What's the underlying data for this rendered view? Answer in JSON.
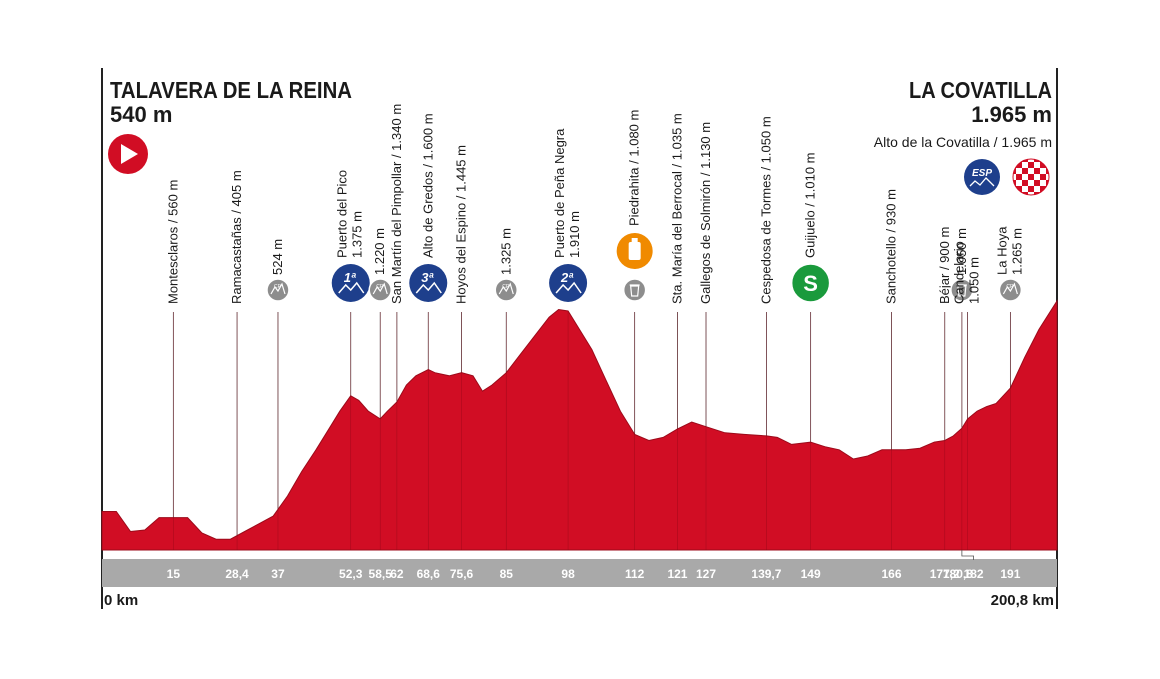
{
  "start": {
    "name": "TALAVERA DE LA REINA",
    "altitude": "540 m"
  },
  "finish": {
    "name": "LA COVATILLA",
    "altitude": "1.965 m",
    "summit": "Alto de la Covatilla / 1.965 m",
    "leader_badge": "ESP"
  },
  "axis": {
    "start_label": "0 km",
    "end_label": "200,8 km",
    "total_km": 200.8
  },
  "colors": {
    "profile": "#d10d24",
    "profile_dark": "#9c0a1a",
    "cat_badge": "#1e3f8c",
    "cp_badge": "#8d8d8d",
    "sprint": "#1a9a3c",
    "feed": "#f08a00",
    "axis_band": "#a9a9a9"
  },
  "chart_data": {
    "type": "area",
    "x": [
      0,
      3,
      6,
      9,
      12,
      15,
      18,
      21,
      24,
      27,
      30,
      33,
      36,
      39,
      42,
      45,
      48,
      50,
      52.3,
      54,
      56,
      58.5,
      60,
      62,
      64,
      66,
      68.6,
      70,
      73,
      75.6,
      78,
      80,
      82,
      85,
      88,
      91,
      94,
      96,
      98,
      100,
      103,
      106,
      109,
      112,
      115,
      118,
      121,
      124,
      127,
      131,
      135,
      139.7,
      142,
      145,
      149,
      152,
      155,
      158,
      161,
      164,
      166,
      169,
      172,
      175,
      177.2,
      179,
      180.8,
      182,
      184,
      186,
      188,
      191,
      194,
      197,
      200.8
    ],
    "y": [
      600,
      600,
      470,
      480,
      560,
      560,
      560,
      460,
      420,
      420,
      470,
      520,
      570,
      700,
      860,
      1000,
      1150,
      1250,
      1350,
      1320,
      1250,
      1200,
      1250,
      1310,
      1420,
      1480,
      1520,
      1500,
      1480,
      1500,
      1480,
      1380,
      1420,
      1500,
      1620,
      1740,
      1860,
      1910,
      1900,
      1800,
      1650,
      1450,
      1250,
      1100,
      1060,
      1080,
      1135,
      1180,
      1150,
      1110,
      1100,
      1090,
      1080,
      1035,
      1050,
      1020,
      1000,
      940,
      960,
      1000,
      1000,
      1000,
      1010,
      1050,
      1060,
      1090,
      1140,
      1200,
      1250,
      1280,
      1300,
      1400,
      1600,
      1780,
      1965
    ],
    "ylim": [
      350,
      2100
    ]
  },
  "points": [
    {
      "km": 15,
      "tick": "15",
      "label": "Montesclaros / 560 m",
      "marker": "none"
    },
    {
      "km": 28.4,
      "tick": "28,4",
      "label": "Ramacastañas / 405 m",
      "marker": "none"
    },
    {
      "km": 37,
      "tick": "37",
      "label": "524 m",
      "marker": "cp"
    },
    {
      "km": 52.3,
      "tick": "52,3",
      "label": "Puerto del Pico",
      "label2": "1.375 m",
      "marker": "cat",
      "cat": "1ª"
    },
    {
      "km": 58.5,
      "tick": "58,5",
      "label": "1.220 m",
      "marker": "cp"
    },
    {
      "km": 62,
      "tick": "62",
      "label": "San Martín del Pimpollar / 1.340 m",
      "marker": "none"
    },
    {
      "km": 68.6,
      "tick": "68,6",
      "label": "Alto de Gredos / 1.600 m",
      "marker": "cat",
      "cat": "3ª"
    },
    {
      "km": 75.6,
      "tick": "75,6",
      "label": "Hoyos del Espino / 1.445 m",
      "marker": "none"
    },
    {
      "km": 85,
      "tick": "85",
      "label": "1.325 m",
      "marker": "cp"
    },
    {
      "km": 98,
      "tick": "98",
      "label": "Puerto de Peña Negra",
      "label2": "1.910 m",
      "marker": "cat",
      "cat": "2ª"
    },
    {
      "km": 112,
      "tick": "112",
      "label": "Piedrahita / 1.080 m",
      "marker": "trash"
    },
    {
      "km": 121,
      "tick": "121",
      "label": "Sta. María del Berrocal / 1.035 m",
      "marker": "none"
    },
    {
      "km": 127,
      "tick": "127",
      "label": "Gallegos de Solmirón / 1.130 m",
      "marker": "none"
    },
    {
      "km": 139.7,
      "tick": "139,7",
      "label": "Cespedosa de Tormes / 1.050 m",
      "marker": "none"
    },
    {
      "km": 149,
      "tick": "149",
      "label": "Guijuelo / 1.010 m",
      "marker": "sprint",
      "badge": "S"
    },
    {
      "km": 166,
      "tick": "166",
      "label": "Sanchotello / 930 m",
      "marker": "none"
    },
    {
      "km": 177.2,
      "tick": "177,2",
      "label": "Béjar / 900 m",
      "marker": "none"
    },
    {
      "km": 180.8,
      "tick": "180,8",
      "label": "1.050 m",
      "marker": "trash"
    },
    {
      "km": 182,
      "tick": "182",
      "label": "Candelario",
      "label2": "1.050 m",
      "marker": "none"
    },
    {
      "km": 191,
      "tick": "191",
      "label": "La Hoya",
      "label2": "1.265 m",
      "marker": "cp"
    }
  ]
}
